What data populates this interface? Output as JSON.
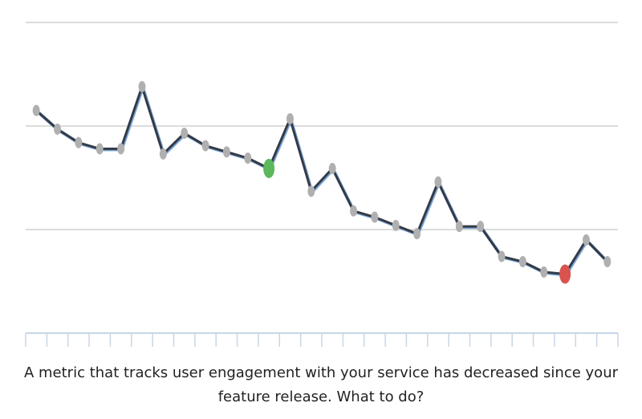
{
  "chart_data": {
    "type": "line",
    "caption": "A metric that tracks user engagement with your service has decreased since your feature release. What to do?",
    "categories": [
      null,
      null,
      null,
      null,
      null,
      null,
      null,
      null,
      null,
      null,
      null,
      null,
      null,
      null,
      null,
      null,
      null,
      null,
      null,
      null,
      null,
      null,
      null,
      null,
      null,
      null,
      null,
      null
    ],
    "series": [
      {
        "color": "#343a45",
        "values": [
          2.15,
          1.97,
          1.84,
          1.78,
          1.78,
          2.38,
          1.73,
          1.93,
          1.81,
          1.75,
          1.69,
          1.59,
          2.07,
          1.37,
          1.59,
          1.18,
          1.12,
          1.04,
          0.96,
          1.46,
          1.03,
          1.03,
          0.74,
          0.69,
          0.59,
          0.57,
          0.9,
          0.69
        ]
      }
    ],
    "marker_color": "#b0b0b0",
    "highlights": [
      {
        "index": 11,
        "color": "#5cb85c"
      },
      {
        "index": 25,
        "color": "#d9534f"
      }
    ],
    "ylim": [
      0,
      3
    ],
    "gridlines": [
      1,
      2,
      3
    ],
    "grid": true
  }
}
